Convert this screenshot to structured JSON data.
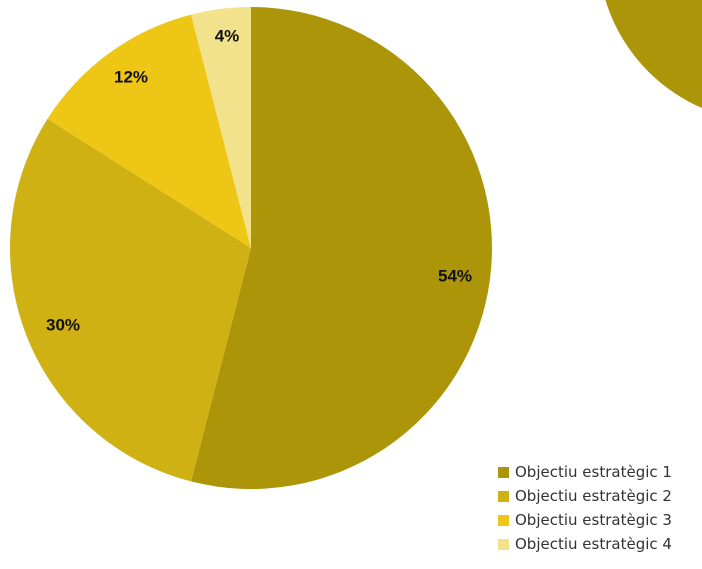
{
  "chart_data": {
    "type": "pie",
    "categories": [
      "Objectiu estratègic 1",
      "Objectiu estratègic 2",
      "Objectiu estratègic 3",
      "Objectiu estratègic 4"
    ],
    "values": [
      54,
      30,
      12,
      4
    ],
    "data_labels": [
      "54%",
      "30%",
      "12%",
      "4%"
    ],
    "colors": [
      "#AD9509",
      "#CFB114",
      "#EEC615",
      "#F3E28C"
    ],
    "legend_position": "bottom-right",
    "decorative_circle_color": "#AD9509"
  }
}
